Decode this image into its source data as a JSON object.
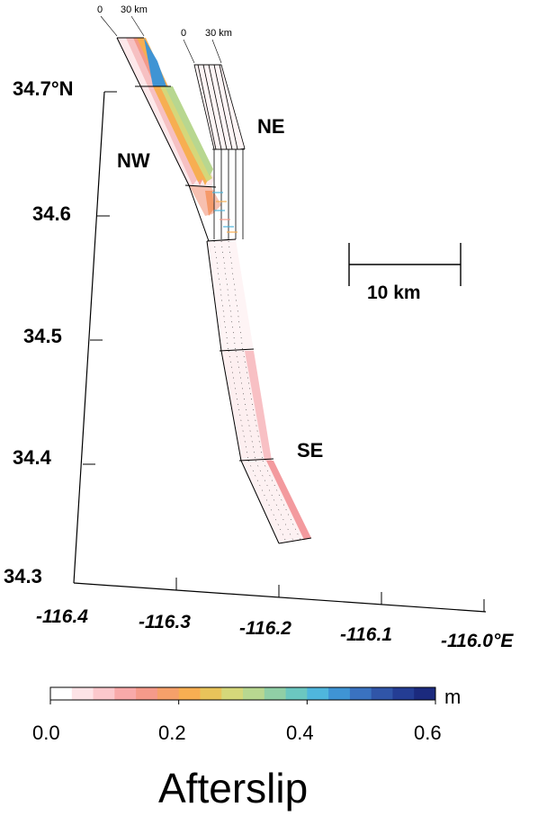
{
  "lat_axis": {
    "ticks": [
      "34.7°N",
      "34.6",
      "34.5",
      "34.4",
      "34.3"
    ]
  },
  "lon_axis": {
    "ticks": [
      "-116.4",
      "-116.3",
      "-116.2",
      "-116.1",
      "-116.0°E"
    ]
  },
  "segments": {
    "nw": "NW",
    "ne": "NE",
    "se": "SE"
  },
  "depth_scale": {
    "zero": "0",
    "max": "30 km"
  },
  "scale_bar": {
    "label": "10 km"
  },
  "colorbar": {
    "unit": "m",
    "ticks": [
      "0.0",
      "0.2",
      "0.4",
      "0.6"
    ],
    "title": "Afterslip",
    "min": 0.0,
    "max": 0.6,
    "colors": [
      "#ffffff",
      "#fde3e6",
      "#fbc8cc",
      "#f8a9a9",
      "#f59a8a",
      "#f6a06a",
      "#f7ae52",
      "#e8c35a",
      "#d5d77a",
      "#b8d790",
      "#90cfa6",
      "#6bc7c0",
      "#4fb6dc",
      "#3f94d4",
      "#3a72c0",
      "#3055a8",
      "#243d94",
      "#1b2a7e"
    ]
  }
}
